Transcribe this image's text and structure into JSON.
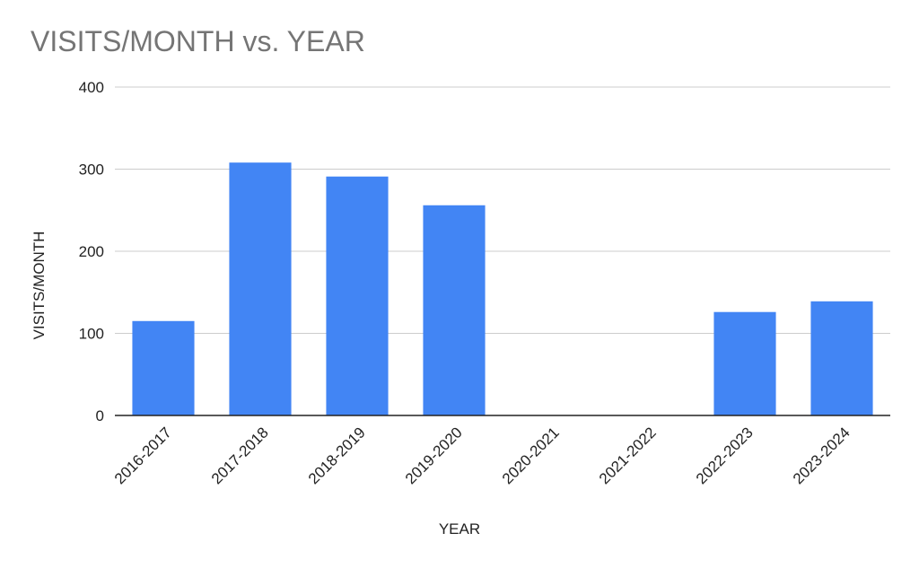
{
  "chart_data": {
    "type": "bar",
    "title": "VISITS/MONTH vs. YEAR",
    "xlabel": "YEAR",
    "ylabel": "VISITS/MONTH",
    "categories": [
      "2016-2017",
      "2017-2018",
      "2018-2019",
      "2019-2020",
      "2020-2021",
      "2021-2022",
      "2022-2023",
      "2023-2024"
    ],
    "series": [
      {
        "values": [
          115,
          308,
          291,
          256,
          0,
          0,
          126,
          139
        ]
      }
    ],
    "ylim": [
      0,
      400
    ],
    "yticks": [
      0,
      100,
      200,
      300,
      400
    ],
    "grid": true,
    "legend": "none",
    "colors": {
      "bar": "#4285f4",
      "grid": "#cccccc",
      "axis": "#222222"
    }
  }
}
